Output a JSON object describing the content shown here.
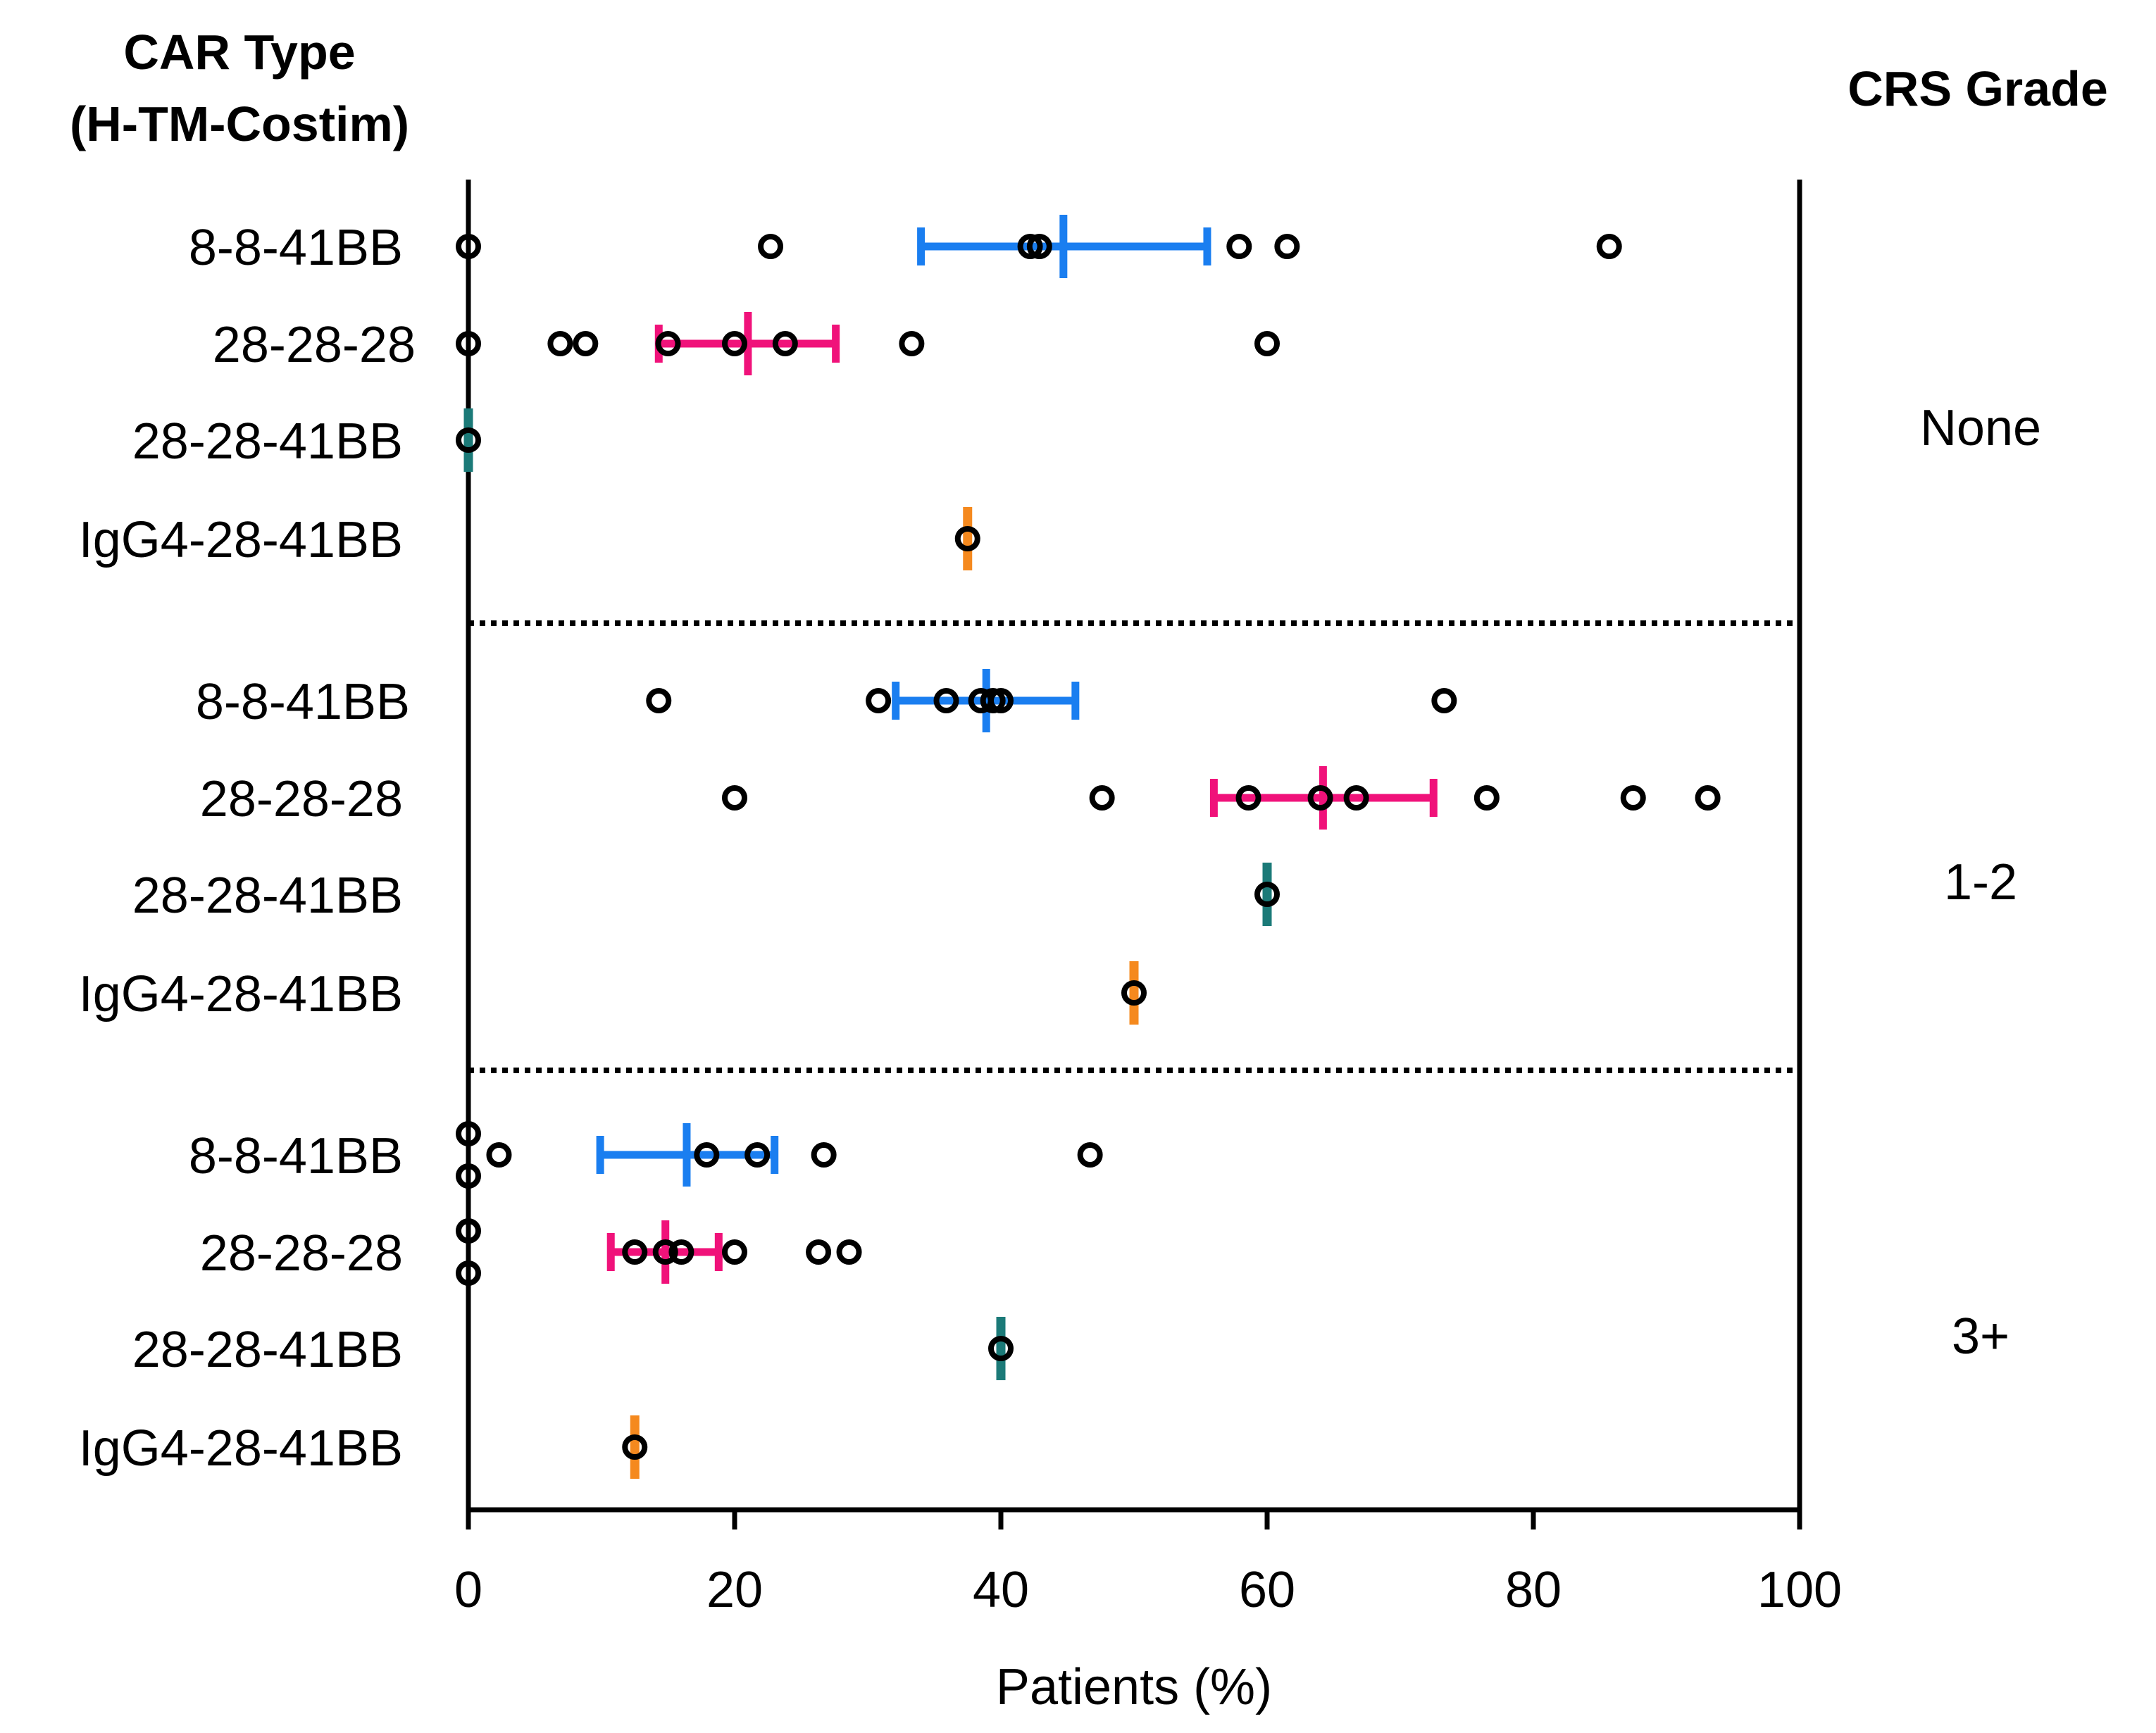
{
  "chart_data": {
    "type": "scatter",
    "left_title_lines": [
      "CAR Type",
      "(H-TM-Costim)"
    ],
    "right_title": "CRS Grade",
    "xlabel": "Patients (%)",
    "xlim": [
      0,
      100
    ],
    "x_ticks": [
      0,
      20,
      40,
      60,
      80,
      100
    ],
    "x_tick_labels": [
      "0",
      "20",
      "40",
      "60",
      "80",
      "100"
    ],
    "colors": {
      "8-8-41BB": "#1a7ef0",
      "28-28-28": "#f0127a",
      "28-28-41BB": "#1b7a78",
      "IgG4-28-41BB": "#f5891e",
      "points": "#000000"
    },
    "groups": [
      {
        "grade": "None",
        "rows": [
          {
            "label": "8-8-41BB",
            "mean": 44.7,
            "lo": 34,
            "hi": 55.5,
            "points": [
              0,
              22.7,
              42.9,
              42.2,
              57.9,
              61.5,
              85.7
            ]
          },
          {
            "label": "28-28-28",
            "mean": 21,
            "lo": 14.3,
            "hi": 27.6,
            "points": [
              0,
              6.9,
              8.8,
              15,
              20,
              23.8,
              33.3,
              60
            ]
          },
          {
            "label": "28-28-41BB",
            "mean": 0,
            "lo": 0,
            "hi": 0,
            "points": [
              0
            ]
          },
          {
            "label": "IgG4-28-41BB",
            "mean": 37.5,
            "lo": 37.5,
            "hi": 37.5,
            "points": [
              37.5
            ]
          }
        ]
      },
      {
        "grade": "1-2",
        "rows": [
          {
            "label": "8-8-41BB",
            "mean": 38.9,
            "lo": 32.1,
            "hi": 45.6,
            "points": [
              14.3,
              30.8,
              35.9,
              38.5,
              39.4,
              40,
              73.3
            ]
          },
          {
            "label": "28-28-28",
            "mean": 64.2,
            "lo": 56,
            "hi": 72.5,
            "points": [
              20,
              47.6,
              58.6,
              64,
              66.7,
              76.5,
              87.5,
              93.1
            ]
          },
          {
            "label": "28-28-41BB",
            "mean": 60,
            "lo": 60,
            "hi": 60,
            "points": [
              60
            ]
          },
          {
            "label": "IgG4-28-41BB",
            "mean": 50,
            "lo": 50,
            "hi": 50,
            "points": [
              50
            ]
          }
        ]
      },
      {
        "grade": "3+",
        "rows": [
          {
            "label": "8-8-41BB",
            "mean": 16.4,
            "lo": 9.9,
            "hi": 23,
            "points": [
              0,
              0,
              2.3,
              17.9,
              21.7,
              26.7,
              46.7
            ]
          },
          {
            "label": "28-28-28",
            "mean": 14.8,
            "lo": 10.7,
            "hi": 18.8,
            "points": [
              0,
              0,
              12.5,
              14.8,
              16,
              20,
              26.3,
              28.6
            ]
          },
          {
            "label": "28-28-41BB",
            "mean": 40,
            "lo": 40,
            "hi": 40,
            "points": [
              40
            ]
          },
          {
            "label": "IgG4-28-41BB",
            "mean": 12.5,
            "lo": 12.5,
            "hi": 12.5,
            "points": [
              12.5
            ]
          }
        ]
      }
    ]
  }
}
